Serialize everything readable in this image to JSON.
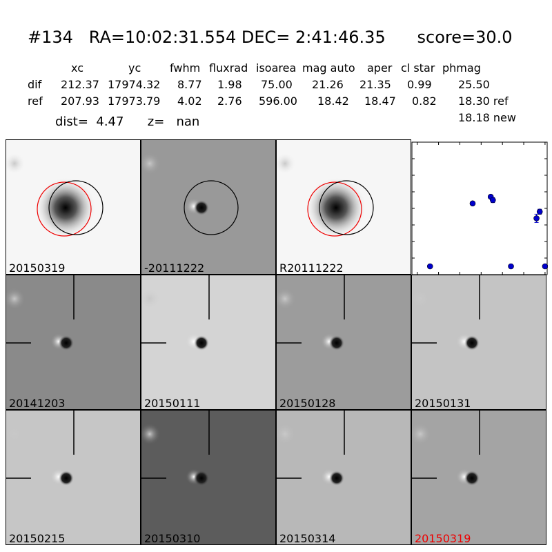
{
  "header": {
    "title": "#134   RA=10:02:31.554 DEC= 2:41:46.35      score=30.0",
    "columns": [
      "xc",
      "yc",
      "fwhm",
      "fluxrad",
      "isoarea",
      "mag auto",
      "aper",
      "cl star",
      "phmag"
    ],
    "rows": [
      {
        "label": "dif",
        "values": [
          "212.37",
          "17974.32",
          "8.77",
          "1.98",
          "75.00",
          "21.26",
          "21.35",
          "0.99",
          "25.50"
        ]
      },
      {
        "label": "ref",
        "values": [
          "207.93",
          "17973.79",
          "4.02",
          "2.76",
          "596.00",
          "18.42",
          "18.47",
          "0.82",
          "18.30 ref"
        ]
      }
    ],
    "extra_phmag": "18.18 new",
    "dist_text": "dist=  4.47      z=   nan"
  },
  "panels": [
    {
      "label": "20150319",
      "bg": "#f6f6f6",
      "type": "blob",
      "circles": [
        "red",
        "black"
      ],
      "label_color": "#000000"
    },
    {
      "label": "-20111222",
      "bg": "#999999",
      "type": "dipole",
      "circles": [
        "black"
      ],
      "label_color": "#000000"
    },
    {
      "label": "R20111222",
      "bg": "#f6f6f6",
      "type": "blob",
      "circles": [
        "red",
        "black"
      ],
      "label_color": "#000000"
    },
    {
      "label": "20141203",
      "bg": "#8a8a8a",
      "type": "dipole",
      "label_color": "#000000"
    },
    {
      "label": "20150111",
      "bg": "#d4d4d4",
      "type": "dipole",
      "label_color": "#000000"
    },
    {
      "label": "20150128",
      "bg": "#9c9c9c",
      "type": "dipole",
      "label_color": "#000000"
    },
    {
      "label": "20150131",
      "bg": "#c4c4c4",
      "type": "dipole",
      "label_color": "#000000"
    },
    {
      "label": "20150215",
      "bg": "#c6c6c6",
      "type": "dipole",
      "label_color": "#000000"
    },
    {
      "label": "20150310",
      "bg": "#5c5c5c",
      "type": "dipole",
      "label_color": "#000000"
    },
    {
      "label": "20150314",
      "bg": "#b8b8b8",
      "type": "dipole",
      "label_color": "#000000"
    },
    {
      "label": "20150319",
      "bg": "#a4a4a4",
      "type": "dipole",
      "label_color": "#ee0000"
    }
  ],
  "chart_data": {
    "type": "scatter",
    "xlim": [
      -125,
      2
    ],
    "ylim": [
      26,
      18
    ],
    "x_ticks": [
      "-120",
      "-100",
      "-80",
      "-60",
      "-40",
      "-20",
      "0"
    ],
    "y_ticks": [
      "18",
      "19",
      "20",
      "21",
      "22",
      "23",
      "24",
      "25",
      "26"
    ],
    "points": [
      {
        "x": -108,
        "y": 25.5
      },
      {
        "x": -68,
        "y": 21.7
      },
      {
        "x": -51,
        "y": 21.3
      },
      {
        "x": -49,
        "y": 21.5,
        "err": 0.15
      },
      {
        "x": -32,
        "y": 25.5
      },
      {
        "x": -8,
        "y": 22.6,
        "err": 0.25
      },
      {
        "x": -5,
        "y": 22.2,
        "err": 0.15
      },
      {
        "x": 0,
        "y": 25.5
      }
    ],
    "marker_color": "#0000cc"
  }
}
